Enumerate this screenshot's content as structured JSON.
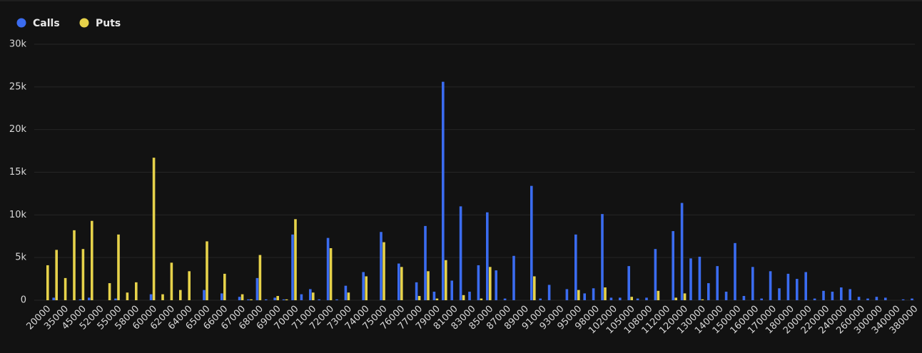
{
  "chart_data": {
    "type": "bar",
    "categories": [
      "20000",
      null,
      "35000",
      null,
      "45000",
      null,
      "52000",
      null,
      "55000",
      null,
      "58000",
      null,
      "60000",
      null,
      "62000",
      null,
      "64000",
      null,
      "65000",
      null,
      "66000",
      null,
      "67000",
      null,
      "68000",
      null,
      "69000",
      null,
      "70000",
      null,
      "71000",
      null,
      "72000",
      null,
      "73000",
      null,
      "74000",
      null,
      "75000",
      null,
      "76000",
      null,
      "77000",
      null,
      "79000",
      null,
      "81000",
      null,
      "83000",
      null,
      "85000",
      null,
      "87000",
      null,
      "89000",
      null,
      "91000",
      null,
      "93000",
      null,
      "95000",
      null,
      "98000",
      null,
      "102000",
      null,
      "105000",
      null,
      "108000",
      null,
      "112000",
      null,
      "120000",
      null,
      "130000",
      null,
      "140000",
      null,
      "150000",
      null,
      "160000",
      null,
      "170000",
      null,
      "180000",
      null,
      "200000",
      null,
      "220000",
      null,
      "240000",
      null,
      "260000",
      null,
      "300000",
      null,
      "340000",
      null,
      "380000"
    ],
    "series": [
      {
        "name": "Calls",
        "color": "#3b6cf0",
        "values": [
          0,
          300,
          0,
          0,
          100,
          300,
          0,
          0,
          200,
          0,
          0,
          0,
          700,
          0,
          0,
          0,
          0,
          0,
          1200,
          0,
          800,
          0,
          400,
          100,
          2600,
          100,
          300,
          100,
          7700,
          700,
          1300,
          100,
          7300,
          100,
          1700,
          0,
          3300,
          0,
          8000,
          0,
          4300,
          0,
          2100,
          8700,
          1000,
          25600,
          2300,
          11000,
          1000,
          4100,
          10300,
          3500,
          200,
          5200,
          0,
          13400,
          200,
          1800,
          0,
          1300,
          7700,
          800,
          1400,
          10100,
          300,
          300,
          4000,
          200,
          300,
          6000,
          0,
          8100,
          11400,
          4900,
          5100,
          2000,
          4000,
          1000,
          6700,
          500,
          3900,
          200,
          3400,
          1400,
          3100,
          2500,
          3300,
          200,
          1100,
          1000,
          1500,
          1300,
          400,
          200,
          400,
          300,
          0,
          100,
          200
        ]
      },
      {
        "name": "Puts",
        "color": "#e6d24a",
        "values": [
          4100,
          5900,
          2600,
          8200,
          6000,
          9300,
          0,
          2000,
          7700,
          900,
          2100,
          0,
          16700,
          700,
          4400,
          1200,
          3400,
          0,
          6900,
          0,
          3100,
          0,
          700,
          100,
          5300,
          0,
          500,
          100,
          9500,
          0,
          900,
          0,
          6100,
          0,
          900,
          0,
          2800,
          0,
          6800,
          0,
          3900,
          0,
          500,
          3400,
          200,
          4700,
          0,
          600,
          0,
          200,
          3900,
          0,
          0,
          0,
          0,
          2800,
          0,
          0,
          0,
          0,
          1200,
          0,
          0,
          1500,
          0,
          0,
          400,
          0,
          0,
          1100,
          0,
          300,
          800,
          0,
          100,
          0,
          0,
          0,
          0,
          0,
          0,
          0,
          0,
          0,
          0,
          0,
          0,
          0,
          0,
          0,
          0,
          0,
          0,
          0,
          0,
          0,
          0,
          0,
          0
        ]
      }
    ],
    "ylim": [
      0,
      30000
    ],
    "yticks": [
      0,
      {
        "value": 5000,
        "label": "5k"
      },
      {
        "value": 10000,
        "label": "10k"
      },
      {
        "value": 15000,
        "label": "15k"
      },
      {
        "value": 20000,
        "label": "20k"
      },
      {
        "value": 25000,
        "label": "25k"
      },
      {
        "value": 30000,
        "label": "30k"
      }
    ],
    "grid": true,
    "legend": "top-left"
  }
}
